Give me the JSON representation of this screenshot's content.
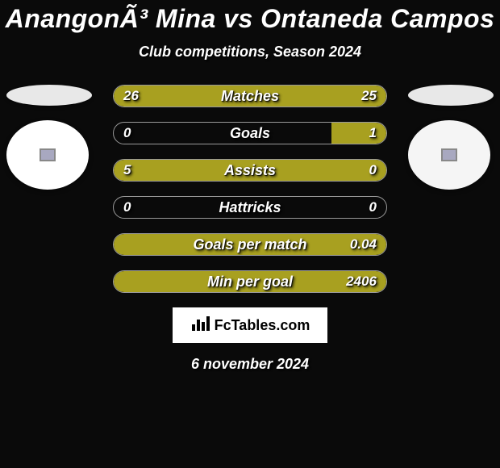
{
  "title": "AnangonÃ³ Mina vs Ontaneda Campos",
  "subtitle": "Club competitions, Season 2024",
  "footer_date": "6 november 2024",
  "footer_logo_text": "FcTables.com",
  "bar_color": "#a8a020",
  "background_color": "#0a0a0a",
  "border_color": "#999999",
  "stats": [
    {
      "label": "Matches",
      "left_value": "26",
      "right_value": "25",
      "left_pct": 51,
      "right_pct": 49,
      "left_fill": true,
      "right_fill": true
    },
    {
      "label": "Goals",
      "left_value": "0",
      "right_value": "1",
      "left_pct": 0,
      "right_pct": 20,
      "left_fill": false,
      "right_fill": true
    },
    {
      "label": "Assists",
      "left_value": "5",
      "right_value": "0",
      "left_pct": 100,
      "right_pct": 0,
      "left_fill": true,
      "right_fill": false
    },
    {
      "label": "Hattricks",
      "left_value": "0",
      "right_value": "0",
      "left_pct": 0,
      "right_pct": 0,
      "left_fill": false,
      "right_fill": false
    },
    {
      "label": "Goals per match",
      "left_value": "",
      "right_value": "0.04",
      "left_pct": 0,
      "right_pct": 0,
      "left_fill": false,
      "right_fill": false,
      "full_fill": true
    },
    {
      "label": "Min per goal",
      "left_value": "",
      "right_value": "2406",
      "left_pct": 0,
      "right_pct": 0,
      "left_fill": false,
      "right_fill": false,
      "full_fill": true
    }
  ]
}
